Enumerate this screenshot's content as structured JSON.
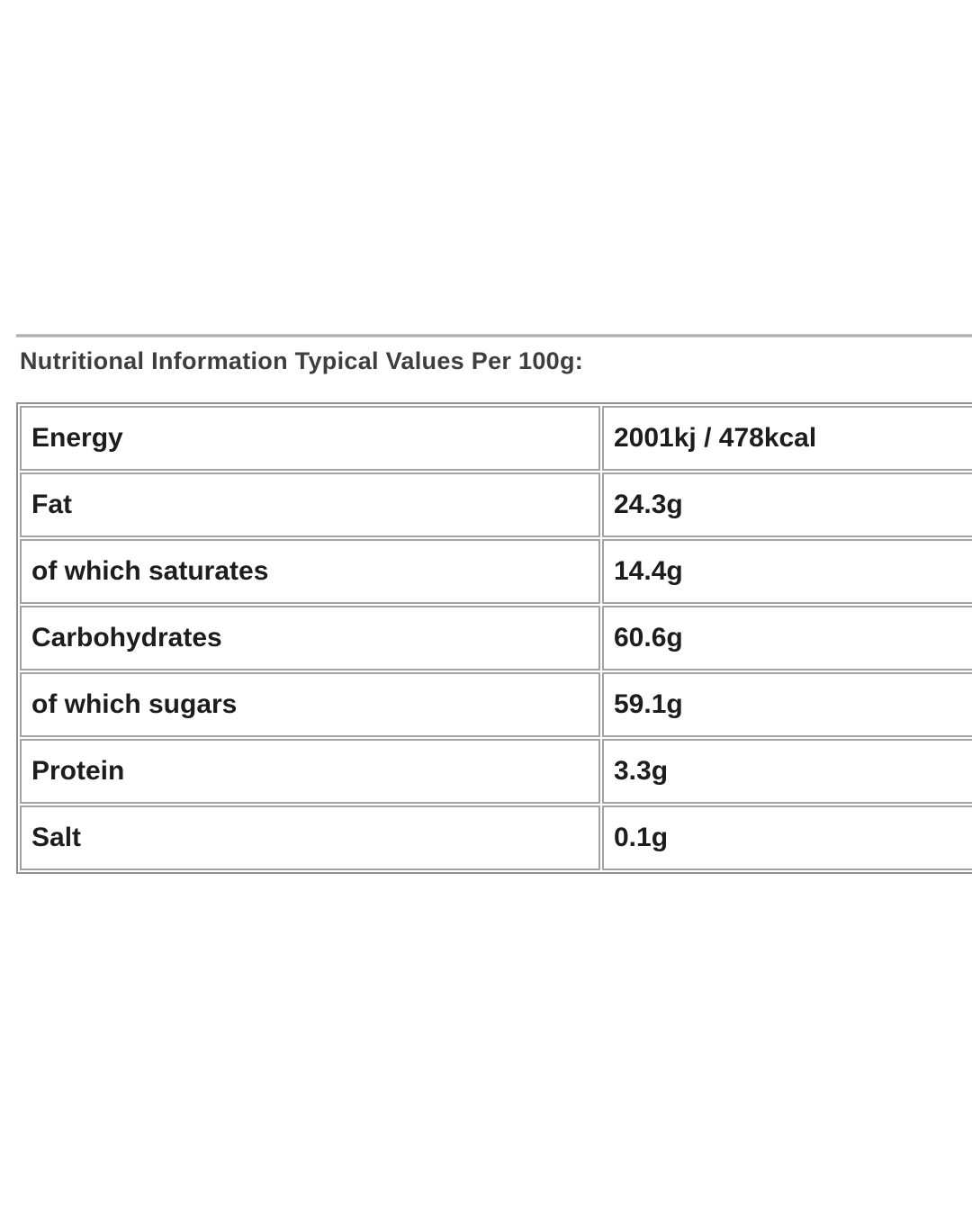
{
  "page": {
    "heading": "Nutritional Information Typical Values Per 100g:"
  },
  "nutrition_table": {
    "rows": [
      {
        "label": "Energy",
        "value": "2001kj / 478kcal"
      },
      {
        "label": "Fat",
        "value": "24.3g"
      },
      {
        "label": "of which saturates",
        "value": "14.4g"
      },
      {
        "label": "Carbohydrates",
        "value": "60.6g"
      },
      {
        "label": "of which sugars",
        "value": "59.1g"
      },
      {
        "label": "Protein",
        "value": "3.3g"
      },
      {
        "label": "Salt",
        "value": "0.1g"
      }
    ]
  },
  "colors": {
    "background": "#ffffff",
    "heading_text": "#3e3e3e",
    "cell_text": "#1d1d1d",
    "table_outer_border": "#8f8f8f",
    "cell_border": "#a3a3a3",
    "divider": "#b0b0b0"
  }
}
